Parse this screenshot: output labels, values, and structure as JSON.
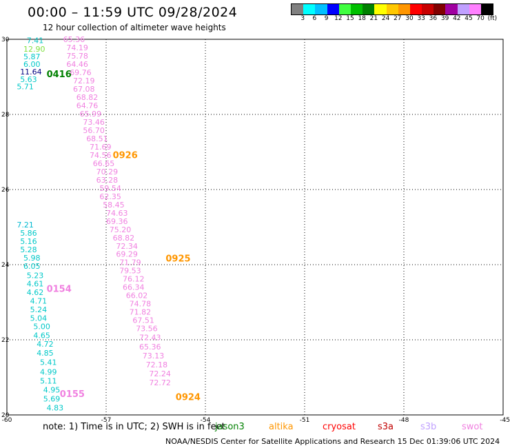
{
  "header": {
    "title": "00:00 – 11:59 UTC 09/28/2024",
    "subtitle": "12 hour collection of altimeter wave heights"
  },
  "color_scale": {
    "colors": [
      "#808080",
      "#00ffff",
      "#00c0ff",
      "#0000ff",
      "#40ff40",
      "#00c000",
      "#008000",
      "#ffff00",
      "#ffc800",
      "#ff9600",
      "#ff0000",
      "#c80000",
      "#800000",
      "#a000a0",
      "#c0a0ff",
      "#ff80ff",
      "#000000"
    ],
    "labels": [
      "3",
      "6",
      "9",
      "12",
      "15",
      "18",
      "21",
      "24",
      "27",
      "30",
      "33",
      "36",
      "39",
      "42",
      "45",
      "70",
      "(ft)"
    ]
  },
  "chart_data": {
    "type": "scatter",
    "title": "00:00 – 11:59 UTC 09/28/2024",
    "subtitle": "12 hour collection of altimeter wave heights",
    "xlim": [
      -60,
      -45
    ],
    "ylim": [
      20,
      30
    ],
    "x_ticks": [
      "-60",
      "-57",
      "-54",
      "-51",
      "-48",
      "-45"
    ],
    "y_ticks": [
      "20",
      "22",
      "24",
      "26",
      "28",
      "30"
    ],
    "grid": true,
    "series": [
      {
        "name": "jason3",
        "color": "#00d8d8",
        "points": [
          {
            "x": -59.4,
            "y": 29.97,
            "v": "7.41",
            "c": "#00c0c0"
          },
          {
            "x": -59.5,
            "y": 29.74,
            "v": "12.90",
            "c": "#80e040"
          },
          {
            "x": -59.5,
            "y": 29.54,
            "v": "5.87",
            "c": "#00c8c8"
          },
          {
            "x": -59.5,
            "y": 29.34,
            "v": "6.00",
            "c": "#00c8c8"
          },
          {
            "x": -59.6,
            "y": 29.14,
            "v": "11.64",
            "c": "#000080"
          },
          {
            "x": -59.6,
            "y": 28.94,
            "v": "5.63",
            "c": "#00c8c8"
          },
          {
            "x": -59.7,
            "y": 28.74,
            "v": "5.71",
            "c": "#00c8c8"
          },
          {
            "x": -59.7,
            "y": 25.06,
            "v": "7.21",
            "c": "#00b8d0"
          },
          {
            "x": -59.6,
            "y": 24.84,
            "v": "5.86",
            "c": "#00c8c8"
          },
          {
            "x": -59.6,
            "y": 24.62,
            "v": "5.16",
            "c": "#00c8c8"
          },
          {
            "x": -59.6,
            "y": 24.4,
            "v": "5.28",
            "c": "#00c8c8"
          },
          {
            "x": -59.5,
            "y": 24.18,
            "v": "5.98",
            "c": "#00c8c8"
          },
          {
            "x": -59.5,
            "y": 23.96,
            "v": "6.05",
            "c": "#00c8c8"
          },
          {
            "x": -59.4,
            "y": 23.72,
            "v": "5.23",
            "c": "#00c8c8"
          },
          {
            "x": -59.4,
            "y": 23.5,
            "v": "4.61",
            "c": "#00c8c8"
          },
          {
            "x": -59.4,
            "y": 23.27,
            "v": "4.62",
            "c": "#00c8c8"
          },
          {
            "x": -59.3,
            "y": 23.04,
            "v": "4.71",
            "c": "#00c8c8"
          },
          {
            "x": -59.3,
            "y": 22.81,
            "v": "5.24",
            "c": "#00c8c8"
          },
          {
            "x": -59.3,
            "y": 22.58,
            "v": "5.04",
            "c": "#00c8c8"
          },
          {
            "x": -59.2,
            "y": 22.36,
            "v": "5.00",
            "c": "#00c8c8"
          },
          {
            "x": -59.2,
            "y": 22.12,
            "v": "4.65",
            "c": "#00c8c8"
          },
          {
            "x": -59.1,
            "y": 21.89,
            "v": "4.72",
            "c": "#00c8c8"
          },
          {
            "x": -59.1,
            "y": 21.65,
            "v": "4.85",
            "c": "#00c8c8"
          },
          {
            "x": -59.0,
            "y": 21.4,
            "v": "5.41",
            "c": "#00c8c8"
          },
          {
            "x": -59.0,
            "y": 21.15,
            "v": "4.99",
            "c": "#00c8c8"
          },
          {
            "x": -59.0,
            "y": 20.91,
            "v": "5.11",
            "c": "#00c8c8"
          },
          {
            "x": -58.9,
            "y": 20.67,
            "v": "4.95",
            "c": "#00c8c8"
          },
          {
            "x": -58.9,
            "y": 20.43,
            "v": "5.69",
            "c": "#00c8c8"
          },
          {
            "x": -58.8,
            "y": 20.19,
            "v": "4.83",
            "c": "#00c8c8"
          }
        ]
      },
      {
        "name": "swot",
        "color": "#f080e0",
        "points": [
          {
            "x": -58.3,
            "y": 30.0,
            "v": "65.36"
          },
          {
            "x": -58.2,
            "y": 29.78,
            "v": "74.19"
          },
          {
            "x": -58.2,
            "y": 29.56,
            "v": "75.78"
          },
          {
            "x": -58.2,
            "y": 29.34,
            "v": "64.46"
          },
          {
            "x": -58.1,
            "y": 29.12,
            "v": "69.76"
          },
          {
            "x": -58.0,
            "y": 28.9,
            "v": "72.19"
          },
          {
            "x": -58.0,
            "y": 28.68,
            "v": "67.08"
          },
          {
            "x": -57.9,
            "y": 28.46,
            "v": "68.82"
          },
          {
            "x": -57.9,
            "y": 28.24,
            "v": "64.76"
          },
          {
            "x": -57.8,
            "y": 28.02,
            "v": "65.99"
          },
          {
            "x": -57.7,
            "y": 27.8,
            "v": "73.46"
          },
          {
            "x": -57.7,
            "y": 27.58,
            "v": "56.70"
          },
          {
            "x": -57.6,
            "y": 27.36,
            "v": "68.51"
          },
          {
            "x": -57.5,
            "y": 27.14,
            "v": "71.69"
          },
          {
            "x": -57.5,
            "y": 26.92,
            "v": "74.56"
          },
          {
            "x": -57.4,
            "y": 26.7,
            "v": "66.65"
          },
          {
            "x": -57.3,
            "y": 26.48,
            "v": "70.29"
          },
          {
            "x": -57.3,
            "y": 26.26,
            "v": "63.28"
          },
          {
            "x": -57.2,
            "y": 26.04,
            "v": "59.54"
          },
          {
            "x": -57.2,
            "y": 25.82,
            "v": "62.35"
          },
          {
            "x": -57.1,
            "y": 25.6,
            "v": "58.45"
          },
          {
            "x": -57.0,
            "y": 25.38,
            "v": "74.63"
          },
          {
            "x": -57.0,
            "y": 25.16,
            "v": "69.36"
          },
          {
            "x": -56.9,
            "y": 24.94,
            "v": "75.20"
          },
          {
            "x": -56.8,
            "y": 24.72,
            "v": "68.82"
          },
          {
            "x": -56.7,
            "y": 24.5,
            "v": "72.34"
          },
          {
            "x": -56.7,
            "y": 24.28,
            "v": "69.29"
          },
          {
            "x": -56.6,
            "y": 24.06,
            "v": "71.79"
          },
          {
            "x": -56.6,
            "y": 23.84,
            "v": "79.53"
          },
          {
            "x": -56.5,
            "y": 23.62,
            "v": "76.12"
          },
          {
            "x": -56.5,
            "y": 23.4,
            "v": "66.34"
          },
          {
            "x": -56.4,
            "y": 23.18,
            "v": "66.02"
          },
          {
            "x": -56.3,
            "y": 22.96,
            "v": "74.78"
          },
          {
            "x": -56.3,
            "y": 22.74,
            "v": "71.82"
          },
          {
            "x": -56.2,
            "y": 22.52,
            "v": "67.51"
          },
          {
            "x": -56.1,
            "y": 22.3,
            "v": "73.56"
          },
          {
            "x": -56.0,
            "y": 22.06,
            "v": "72.43"
          },
          {
            "x": -56.0,
            "y": 21.82,
            "v": "65.36"
          },
          {
            "x": -55.9,
            "y": 21.58,
            "v": "73.13"
          },
          {
            "x": -55.8,
            "y": 21.34,
            "v": "72.18"
          },
          {
            "x": -55.7,
            "y": 21.1,
            "v": "72.24"
          },
          {
            "x": -55.7,
            "y": 20.86,
            "v": "72.72"
          }
        ]
      }
    ],
    "time_labels": [
      {
        "x": -58.8,
        "y": 29.08,
        "text": "0416",
        "color": "#008000"
      },
      {
        "x": -56.8,
        "y": 26.93,
        "text": "0926",
        "color": "#ff9600"
      },
      {
        "x": -55.2,
        "y": 24.17,
        "text": "0925",
        "color": "#ff9600"
      },
      {
        "x": -58.8,
        "y": 23.37,
        "text": "0154",
        "color": "#f080e0"
      },
      {
        "x": -58.4,
        "y": 20.57,
        "text": "0155",
        "color": "#f080e0"
      },
      {
        "x": -54.9,
        "y": 20.49,
        "text": "0924",
        "color": "#ff9600"
      }
    ]
  },
  "footer": {
    "note": "note: 1) Time is in UTC; 2) SWH is in feet",
    "credit": "NOAA/NESDIS Center for Satellite Applications and Research    15 Dec 01:39:06 UTC 2024"
  },
  "legend": [
    {
      "label": "jason3",
      "color": "#008000"
    },
    {
      "label": "altika",
      "color": "#ff9600"
    },
    {
      "label": "cryosat",
      "color": "#ff0000"
    },
    {
      "label": "s3a",
      "color": "#c00000"
    },
    {
      "label": "s3b",
      "color": "#c0a0ff"
    },
    {
      "label": "swot",
      "color": "#f080e0"
    }
  ]
}
